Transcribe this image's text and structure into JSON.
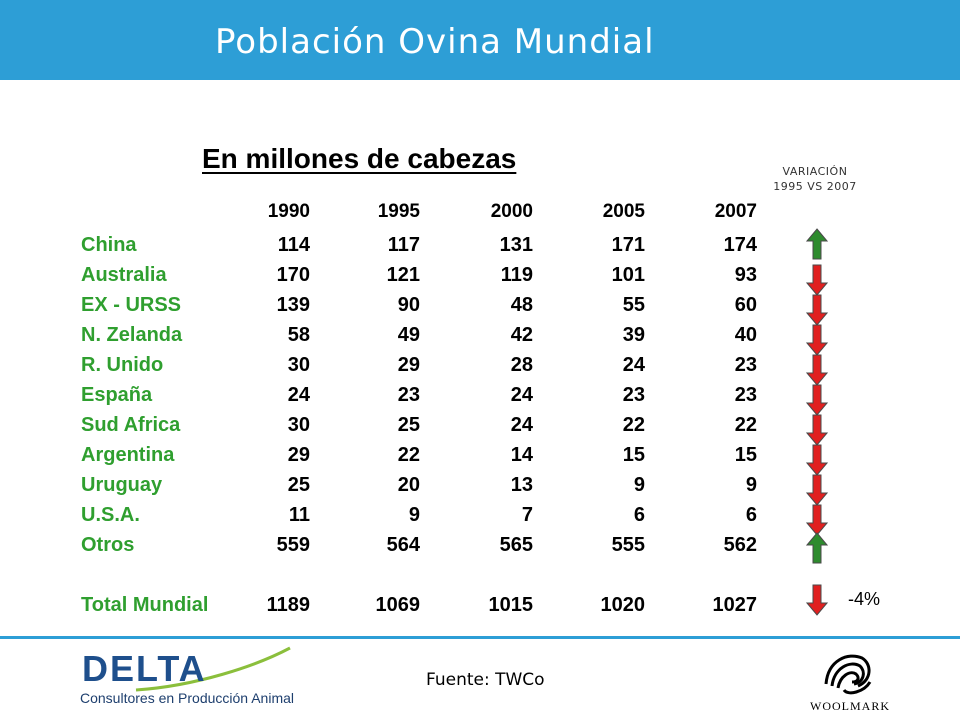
{
  "header": {
    "title": "Población Ovina Mundial"
  },
  "subtitle": "En millones de cabezas",
  "variation_header": {
    "line1": "VARIACIÓN",
    "line2": "1995 VS 2007"
  },
  "table": {
    "years": [
      "1990",
      "1995",
      "2000",
      "2005",
      "2007"
    ],
    "rows": [
      {
        "country": "China",
        "values": [
          "114",
          "117",
          "131",
          "171",
          "174"
        ],
        "trend": "up"
      },
      {
        "country": "Australia",
        "values": [
          "170",
          "121",
          "119",
          "101",
          "93"
        ],
        "trend": "down"
      },
      {
        "country": "EX - URSS",
        "values": [
          "139",
          "90",
          "48",
          "55",
          "60"
        ],
        "trend": "down"
      },
      {
        "country": "N. Zelanda",
        "values": [
          "58",
          "49",
          "42",
          "39",
          "40"
        ],
        "trend": "down"
      },
      {
        "country": "R. Unido",
        "values": [
          "30",
          "29",
          "28",
          "24",
          "23"
        ],
        "trend": "down"
      },
      {
        "country": "España",
        "values": [
          "24",
          "23",
          "24",
          "23",
          "23"
        ],
        "trend": "down"
      },
      {
        "country": "Sud Africa",
        "values": [
          "30",
          "25",
          "24",
          "22",
          "22"
        ],
        "trend": "down"
      },
      {
        "country": "Argentina",
        "values": [
          "29",
          "22",
          "14",
          "15",
          "15"
        ],
        "trend": "down"
      },
      {
        "country": "Uruguay",
        "values": [
          "25",
          "20",
          "13",
          "9",
          "9"
        ],
        "trend": "down"
      },
      {
        "country": "U.S.A.",
        "values": [
          "11",
          "9",
          "7",
          "6",
          "6"
        ],
        "trend": "down"
      },
      {
        "country": "Otros",
        "values": [
          "559",
          "564",
          "565",
          "555",
          "562"
        ],
        "trend": "up"
      }
    ],
    "total": {
      "country": "Total Mundial",
      "values": [
        "1189",
        "1069",
        "1015",
        "1020",
        "1027"
      ],
      "trend": "down",
      "change": "-4%"
    }
  },
  "source": "Fuente: TWCo",
  "logos": {
    "delta": {
      "word": "DELTA",
      "tagline": "Consultores en Producción Animal"
    },
    "woolmark": {
      "word": "WOOLMARK"
    }
  },
  "colors": {
    "header": "#2d9ed6",
    "country": "#2f9f2f",
    "up": "#2e8b2e",
    "down": "#e02020"
  }
}
